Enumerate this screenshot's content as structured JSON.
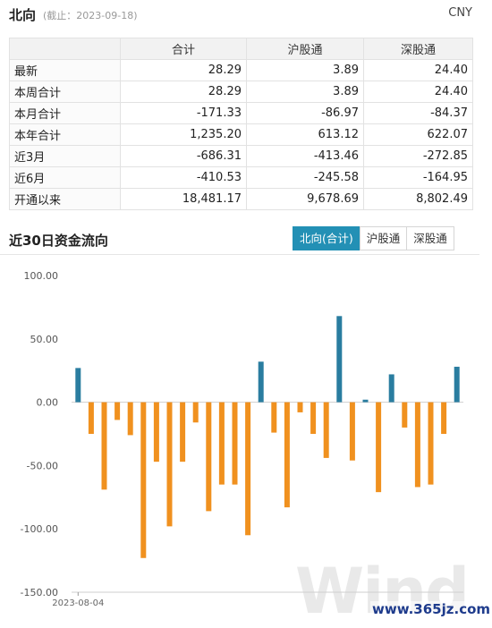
{
  "header": {
    "title": "北向",
    "date_note": "(截止：2023-09-18)",
    "currency": "CNY"
  },
  "summary": {
    "columns": [
      "",
      "合计",
      "沪股通",
      "深股通"
    ],
    "rows": [
      [
        "最新",
        "28.29",
        "3.89",
        "24.40"
      ],
      [
        "本周合计",
        "28.29",
        "3.89",
        "24.40"
      ],
      [
        "本月合计",
        "-171.33",
        "-86.97",
        "-84.37"
      ],
      [
        "本年合计",
        "1,235.20",
        "613.12",
        "622.07"
      ],
      [
        "近3月",
        "-686.31",
        "-413.46",
        "-272.85"
      ],
      [
        "近6月",
        "-410.53",
        "-245.58",
        "-164.95"
      ],
      [
        "开通以来",
        "18,481.17",
        "9,678.69",
        "8,802.49"
      ]
    ]
  },
  "section": {
    "title": "近30日资金流向"
  },
  "tabs": [
    {
      "label": "北向(合计)",
      "active": true
    },
    {
      "label": "沪股通",
      "active": false
    },
    {
      "label": "深股通",
      "active": false
    }
  ],
  "watermark": {
    "text": "Wind",
    "site": "www.365jz.com"
  },
  "colors": {
    "positive": "#2a7da0",
    "negative": "#f0911f",
    "accent": "#2390b5"
  },
  "chart_data": {
    "type": "bar",
    "title": "",
    "xlabel": "",
    "ylabel": "",
    "x_tick_labels": [
      "2023-08-04"
    ],
    "ylim": [
      -150,
      100
    ],
    "y_ticks": [
      "100.00",
      "50.00",
      "0.00",
      "-50.00",
      "-100.00",
      "-150.00"
    ],
    "values": [
      27,
      -25,
      -69,
      -14,
      -26,
      -123,
      -47,
      -98,
      -47,
      -16,
      -86,
      -65,
      -65,
      -105,
      32,
      -24,
      -83,
      -8,
      -25,
      -44,
      68,
      -46,
      2,
      -71,
      22,
      -20,
      -67,
      -65,
      -25,
      28
    ]
  }
}
